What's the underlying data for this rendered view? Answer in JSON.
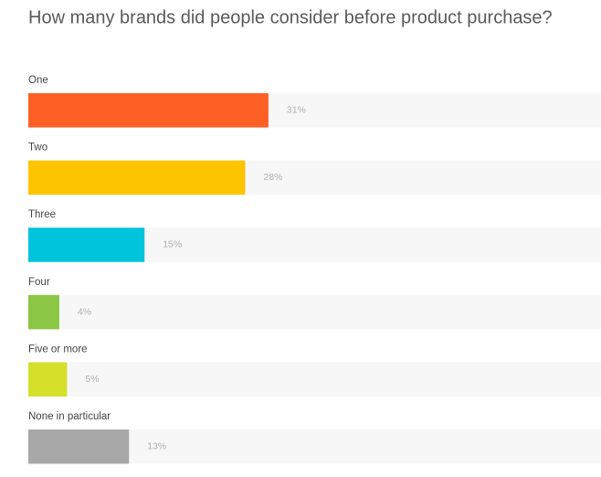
{
  "chart_data": {
    "type": "bar",
    "orientation": "horizontal",
    "title": "How many brands did people consider before product purchase?",
    "categories": [
      "One",
      "Two",
      "Three",
      "Four",
      "Five or more",
      "None in particular"
    ],
    "values": [
      31,
      28,
      15,
      4,
      5,
      13
    ],
    "value_labels": [
      "31%",
      "28%",
      "15%",
      "4%",
      "5%",
      "13%"
    ],
    "colors": [
      "#fe5f24",
      "#fdc400",
      "#00c3dc",
      "#8bc645",
      "#d4e02a",
      "#a8a8a8"
    ]
  }
}
